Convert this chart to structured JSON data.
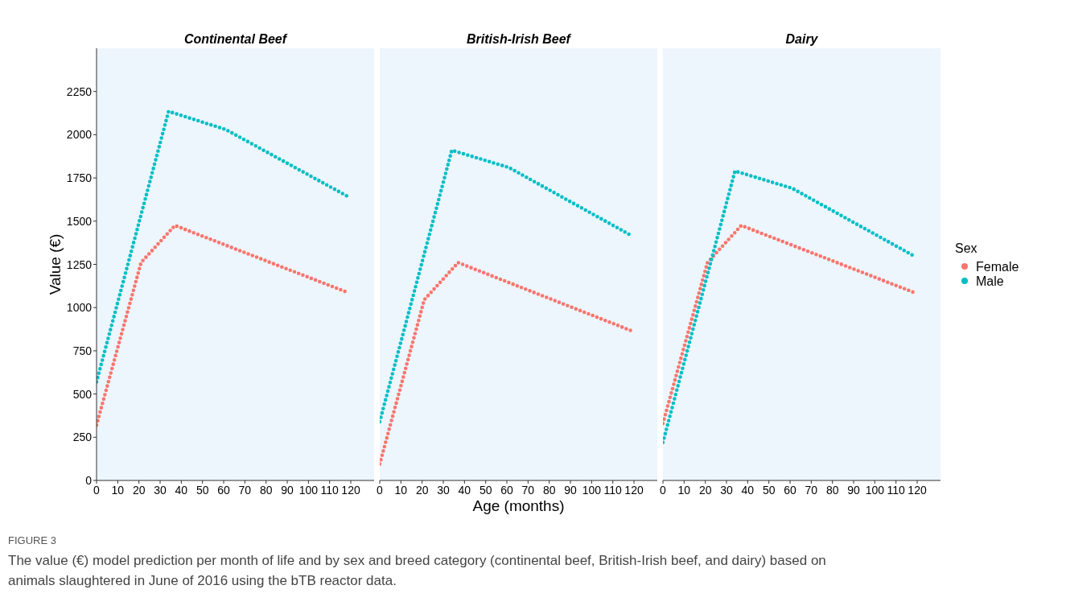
{
  "chart_data": [
    {
      "type": "line",
      "title": "Continental Beef",
      "ylabel": "Value (€)",
      "xlim": [
        0,
        131
      ],
      "xticks": [
        0,
        10,
        20,
        30,
        40,
        50,
        60,
        70,
        80,
        90,
        100,
        110,
        120
      ],
      "ylim": [
        0,
        2500
      ],
      "yticks": [
        0,
        250,
        500,
        750,
        1000,
        1250,
        1500,
        1750,
        2000,
        2250
      ],
      "line_style": "dotted",
      "grid": false,
      "legend": false,
      "annotations": [
        "FIGURE 3",
        "The value (€) model prediction per month of life and by sex and breed category (continental beef, British-Irish beef, and dairy) based on animals slaughtered in June of 2016 using the bTB reactor data."
      ],
      "series": [
        {
          "color": "#f8766d",
          "x": [
            0,
            21,
            37,
            119
          ],
          "values": [
            320,
            1260,
            1475,
            1085
          ]
        },
        {
          "color": "#00bfc4",
          "x": [
            0,
            34,
            61,
            119
          ],
          "values": [
            570,
            2135,
            2030,
            1640
          ]
        }
      ]
    },
    {
      "type": "line",
      "title": "British-Irish Beef",
      "xlabel": "Age (months)",
      "xlim": [
        0,
        131
      ],
      "xticks": [
        0,
        10,
        20,
        30,
        40,
        50,
        60,
        70,
        80,
        90,
        100,
        110,
        120
      ],
      "ylim": [
        0,
        2500
      ],
      "tick_labels": "x",
      "line_style": "dotted",
      "grid": false,
      "legend": false,
      "series": [
        {
          "color": "#f8766d",
          "x": [
            0,
            21,
            37,
            119
          ],
          "values": [
            95,
            1045,
            1260,
            865
          ]
        },
        {
          "color": "#00bfc4",
          "x": [
            0,
            34,
            61,
            119
          ],
          "values": [
            340,
            1910,
            1810,
            1415
          ]
        }
      ]
    },
    {
      "type": "line",
      "title": "Dairy",
      "legend_title": "Sex",
      "xlim": [
        0,
        131
      ],
      "xticks": [
        0,
        10,
        20,
        30,
        40,
        50,
        60,
        70,
        80,
        90,
        100,
        110,
        120
      ],
      "ylim": [
        0,
        2500
      ],
      "tick_labels": "x",
      "line_style": "dotted",
      "grid": false,
      "legend": "right",
      "series": [
        {
          "name": "Female",
          "color": "#f8766d",
          "x": [
            0,
            21,
            37,
            119
          ],
          "values": [
            330,
            1260,
            1475,
            1085
          ]
        },
        {
          "name": "Male",
          "color": "#00bfc4",
          "x": [
            0,
            34,
            61,
            119
          ],
          "values": [
            220,
            1790,
            1690,
            1295
          ]
        }
      ]
    }
  ]
}
